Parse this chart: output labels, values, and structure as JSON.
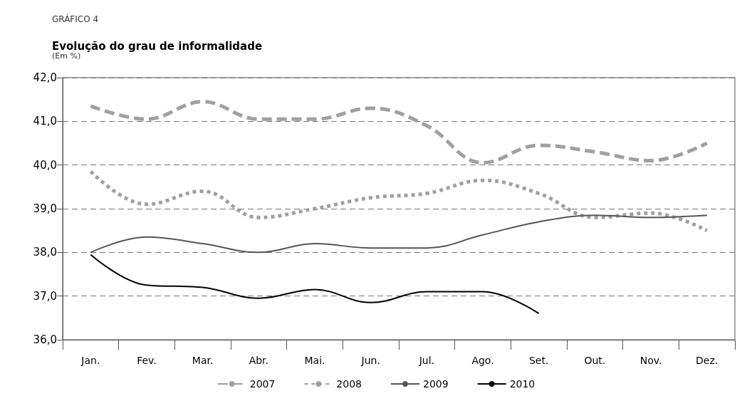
{
  "chart_data": {
    "type": "line",
    "title": "Evolução do grau de informalidade",
    "subtitle": "(Em %)",
    "annotations": [
      "GRÁFICO 4"
    ],
    "categories": [
      "Jan.",
      "Fev.",
      "Mar.",
      "Abr.",
      "Mai.",
      "Jun.",
      "Jul.",
      "Ago.",
      "Set.",
      "Out.",
      "Nov.",
      "Dez."
    ],
    "series": [
      {
        "name": "2007",
        "color": "#a0a0a0",
        "line_style": "dashed",
        "values": [
          41.35,
          41.05,
          41.45,
          41.05,
          41.05,
          41.3,
          40.9,
          40.05,
          40.45,
          40.3,
          40.1,
          40.5
        ]
      },
      {
        "name": "2008",
        "color": "#a0a0a0",
        "line_style": "dotted",
        "values": [
          39.85,
          39.1,
          39.4,
          38.8,
          39.0,
          39.25,
          39.35,
          39.65,
          39.35,
          38.8,
          38.9,
          38.5
        ]
      },
      {
        "name": "2009",
        "color": "#555555",
        "line_style": "solid",
        "values": [
          38.0,
          38.35,
          38.2,
          38.0,
          38.2,
          38.1,
          38.1,
          38.4,
          38.7,
          38.85,
          38.8,
          38.85
        ]
      },
      {
        "name": "2010",
        "color": "#000000",
        "line_style": "solid",
        "values": [
          37.95,
          37.25,
          37.2,
          36.95,
          37.15,
          36.85,
          37.1,
          37.1,
          36.6,
          null,
          null,
          null
        ]
      }
    ],
    "ylim": [
      36,
      42
    ],
    "yticks": [
      {
        "value": 36,
        "label": "36,0"
      },
      {
        "value": 37,
        "label": "37,0"
      },
      {
        "value": 38,
        "label": "38,0"
      },
      {
        "value": 39,
        "label": "39,0"
      },
      {
        "value": 40,
        "label": "40,0"
      },
      {
        "value": 41,
        "label": "41,0"
      },
      {
        "value": 42,
        "label": "42,0"
      }
    ],
    "grid": "y",
    "legend": "bottom",
    "marker": "none"
  }
}
